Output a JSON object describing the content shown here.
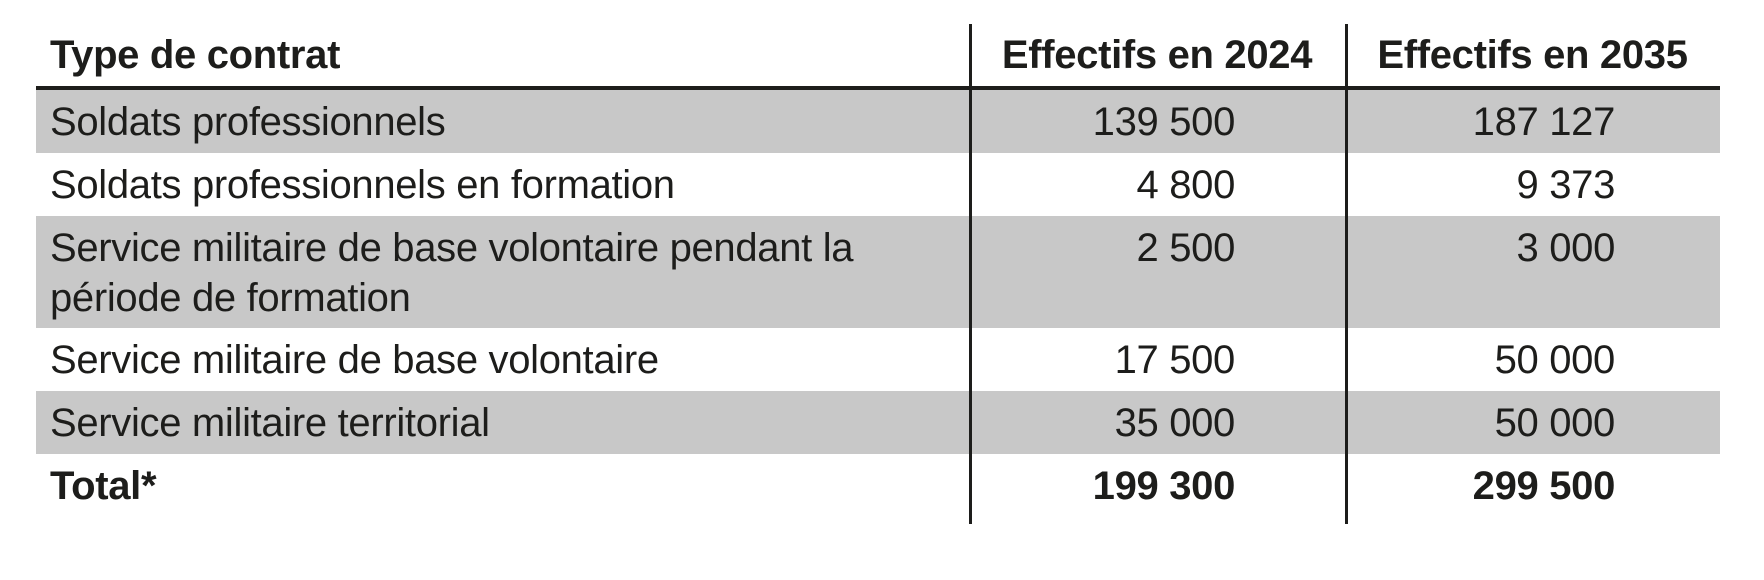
{
  "table": {
    "columns": [
      "Type de contrat",
      "Effectifs en 2024",
      "Effectifs en 2035"
    ],
    "rows": [
      {
        "label": "Soldats professionnels",
        "y2024": "139 500",
        "y2035": "187 127"
      },
      {
        "label": "Soldats professionnels en formation",
        "y2024": "4 800",
        "y2035": "9 373"
      },
      {
        "label": "Service militaire de base volontaire pendant la\npériode de formation",
        "y2024": "2 500",
        "y2035": "3 000"
      },
      {
        "label": "Service militaire de base volontaire",
        "y2024": "17 500",
        "y2035": "50 000"
      },
      {
        "label": "Service militaire territorial",
        "y2024": "35 000",
        "y2035": "50 000"
      },
      {
        "label": "Total*",
        "y2024": "199 300",
        "y2035": "299 500"
      }
    ]
  },
  "colors": {
    "row_shade": "#c8c8c8",
    "ink": "#1d1d1b"
  }
}
